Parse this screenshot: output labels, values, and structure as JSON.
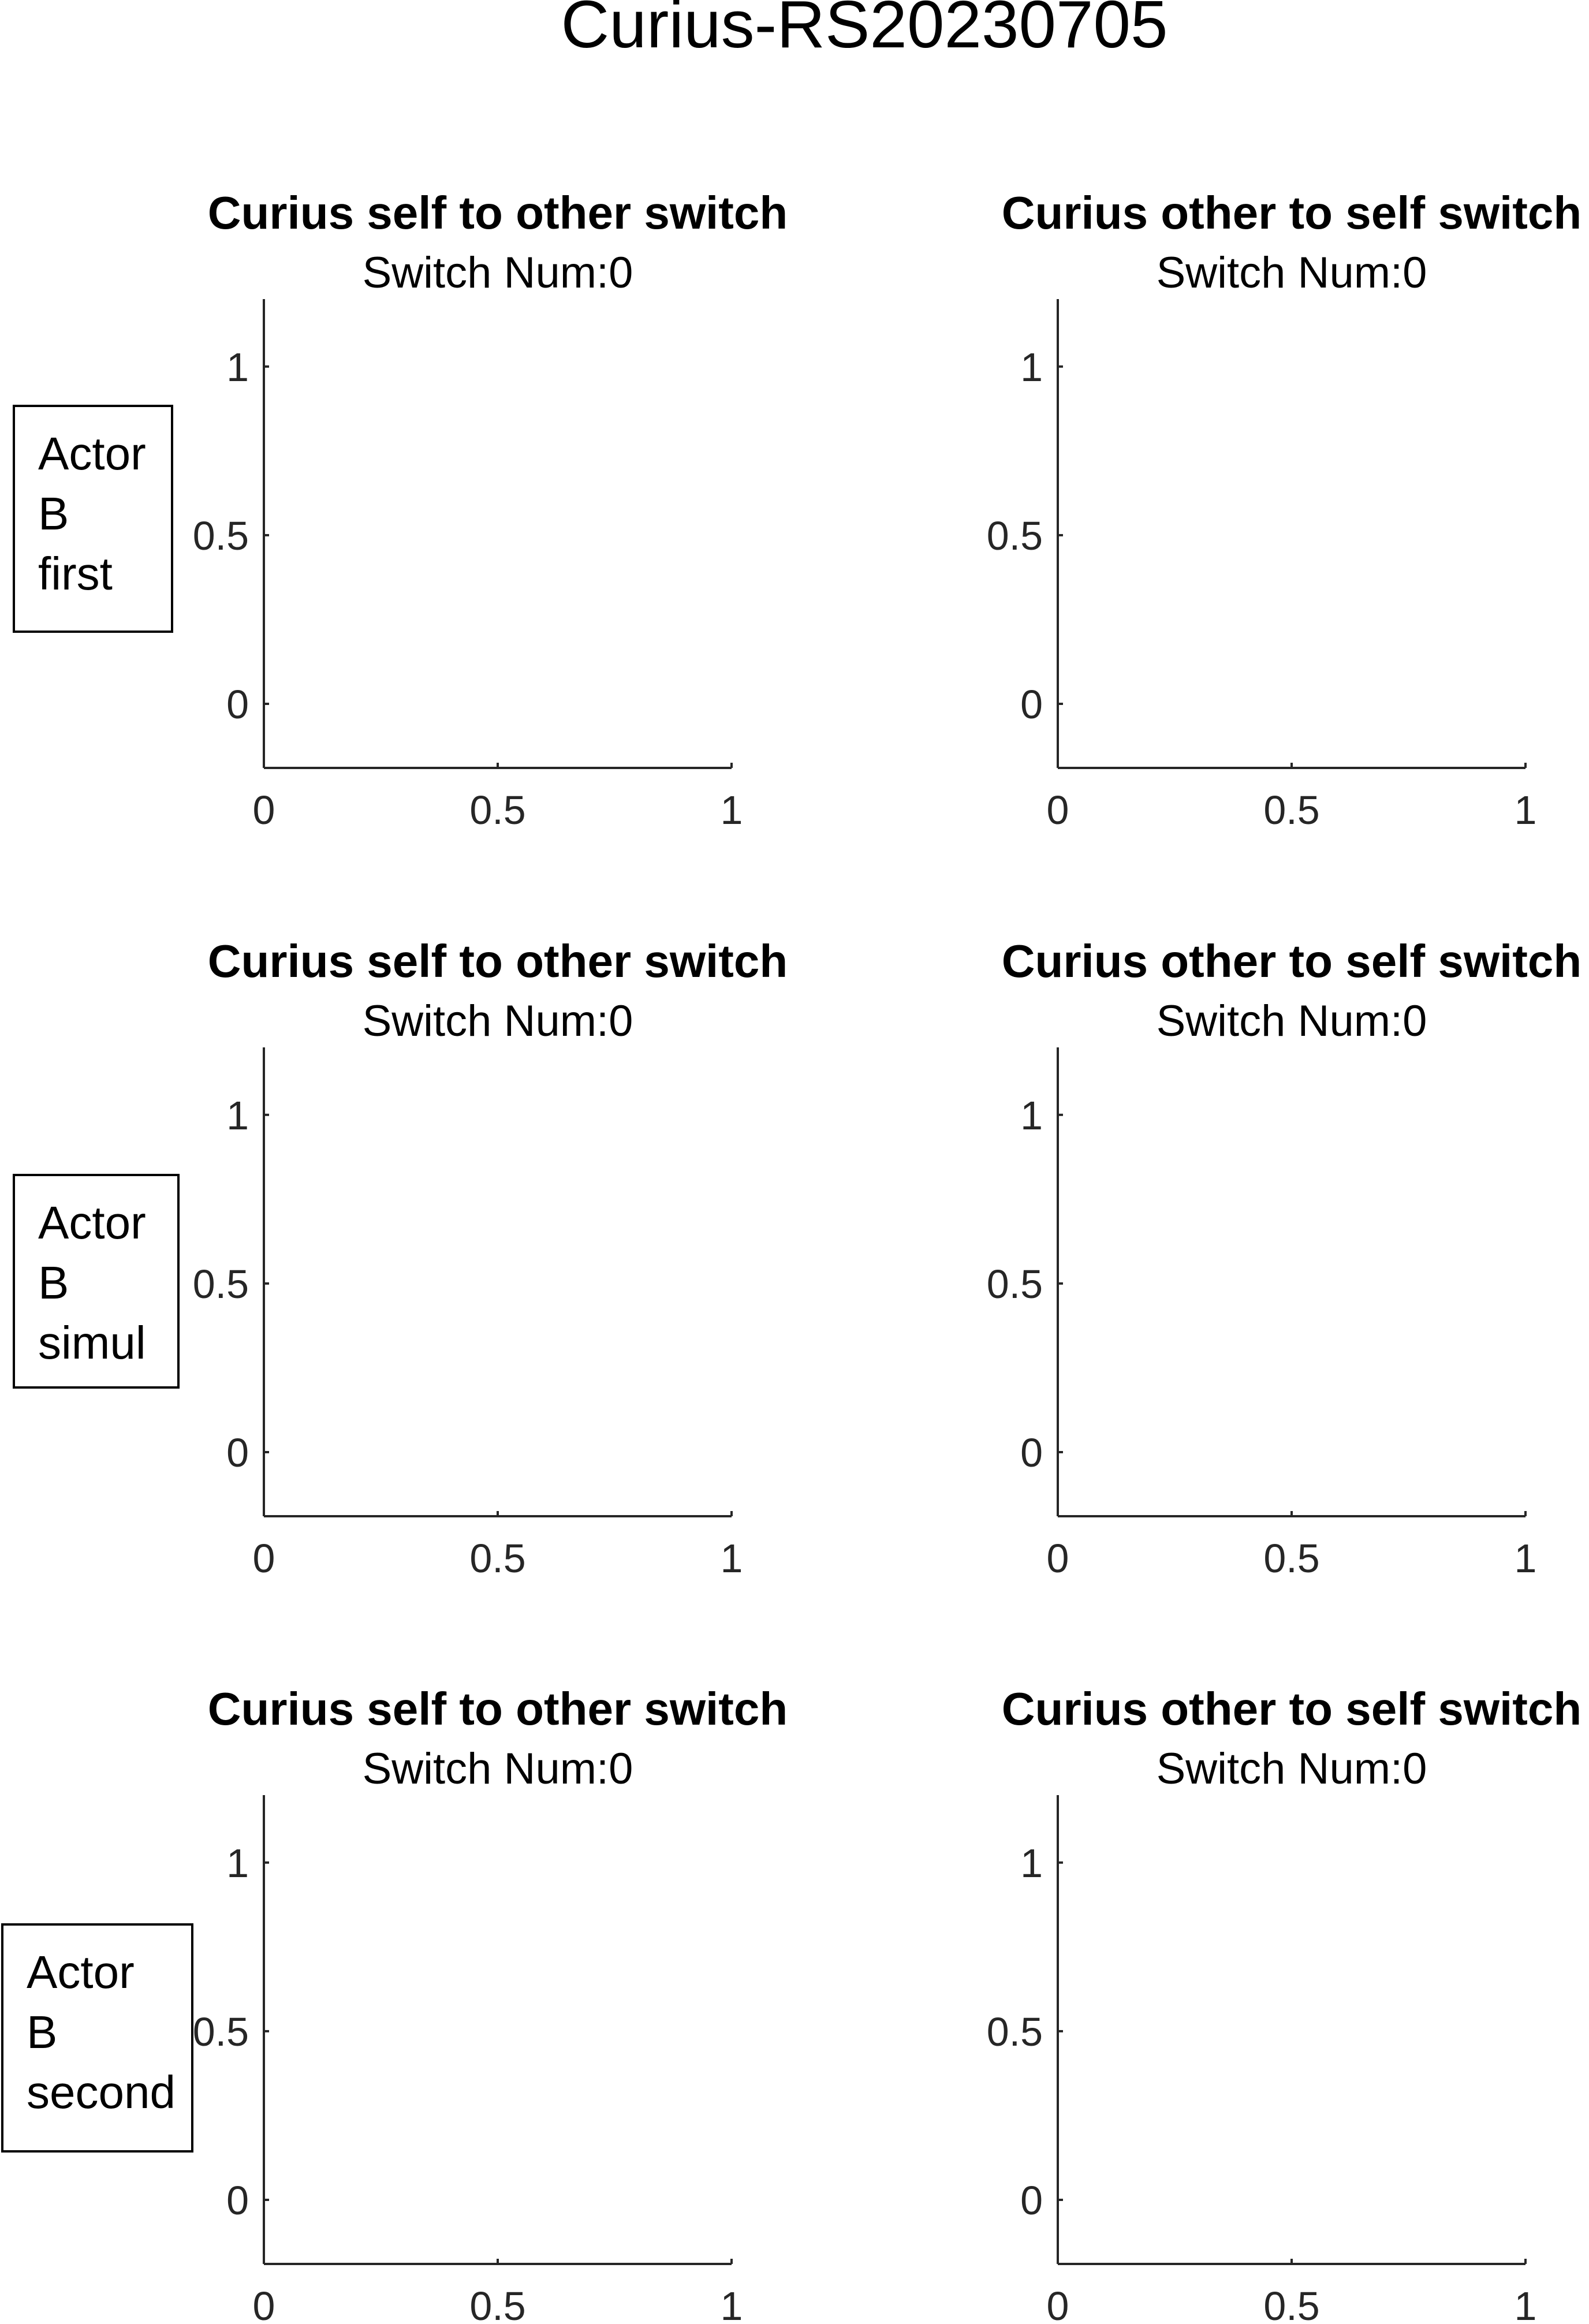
{
  "figure": {
    "title": "Curius-RS20230705",
    "colors": {
      "axis": "#262626",
      "text": "#000000",
      "background": "#ffffff"
    }
  },
  "row_labels": [
    [
      "Actor",
      "B",
      "first"
    ],
    [
      "Actor",
      "B",
      "simul"
    ],
    [
      "Actor",
      "B",
      "second"
    ]
  ],
  "chart_data": [
    {
      "type": "line",
      "title": "Curius self to other switch",
      "subtitle": "Switch Num:0",
      "series": [],
      "xlim": [
        0,
        1
      ],
      "ylim": [
        -0.19,
        1.2
      ],
      "xticks": [
        0,
        0.5,
        1
      ],
      "yticks": [
        0,
        0.5,
        1
      ],
      "xticklabels": [
        "0",
        "0.5",
        "1"
      ],
      "yticklabels": [
        "0",
        "0.5",
        "1"
      ],
      "grid": false,
      "box": "off"
    },
    {
      "type": "line",
      "title": "Curius other to self switch",
      "subtitle": "Switch Num:0",
      "series": [],
      "xlim": [
        0,
        1
      ],
      "ylim": [
        -0.19,
        1.2
      ],
      "xticks": [
        0,
        0.5,
        1
      ],
      "yticks": [
        0,
        0.5,
        1
      ],
      "xticklabels": [
        "0",
        "0.5",
        "1"
      ],
      "yticklabels": [
        "0",
        "0.5",
        "1"
      ],
      "grid": false,
      "box": "off"
    },
    {
      "type": "line",
      "title": "Curius self to other switch",
      "subtitle": "Switch Num:0",
      "series": [],
      "xlim": [
        0,
        1
      ],
      "ylim": [
        -0.19,
        1.2
      ],
      "xticks": [
        0,
        0.5,
        1
      ],
      "yticks": [
        0,
        0.5,
        1
      ],
      "xticklabels": [
        "0",
        "0.5",
        "1"
      ],
      "yticklabels": [
        "0",
        "0.5",
        "1"
      ],
      "grid": false,
      "box": "off"
    },
    {
      "type": "line",
      "title": "Curius other to self switch",
      "subtitle": "Switch Num:0",
      "series": [],
      "xlim": [
        0,
        1
      ],
      "ylim": [
        -0.19,
        1.2
      ],
      "xticks": [
        0,
        0.5,
        1
      ],
      "yticks": [
        0,
        0.5,
        1
      ],
      "xticklabels": [
        "0",
        "0.5",
        "1"
      ],
      "yticklabels": [
        "0",
        "0.5",
        "1"
      ],
      "grid": false,
      "box": "off"
    },
    {
      "type": "line",
      "title": "Curius self to other switch",
      "subtitle": "Switch Num:0",
      "series": [],
      "xlim": [
        0,
        1
      ],
      "ylim": [
        -0.19,
        1.2
      ],
      "xticks": [
        0,
        0.5,
        1
      ],
      "yticks": [
        0,
        0.5,
        1
      ],
      "xticklabels": [
        "0",
        "0.5",
        "1"
      ],
      "yticklabels": [
        "0",
        "0.5",
        "1"
      ],
      "grid": false,
      "box": "off"
    },
    {
      "type": "line",
      "title": "Curius other to self switch",
      "subtitle": "Switch Num:0",
      "series": [],
      "xlim": [
        0,
        1
      ],
      "ylim": [
        -0.19,
        1.2
      ],
      "xticks": [
        0,
        0.5,
        1
      ],
      "yticks": [
        0,
        0.5,
        1
      ],
      "xticklabels": [
        "0",
        "0.5",
        "1"
      ],
      "yticklabels": [
        "0",
        "0.5",
        "1"
      ],
      "grid": false,
      "box": "off"
    }
  ]
}
